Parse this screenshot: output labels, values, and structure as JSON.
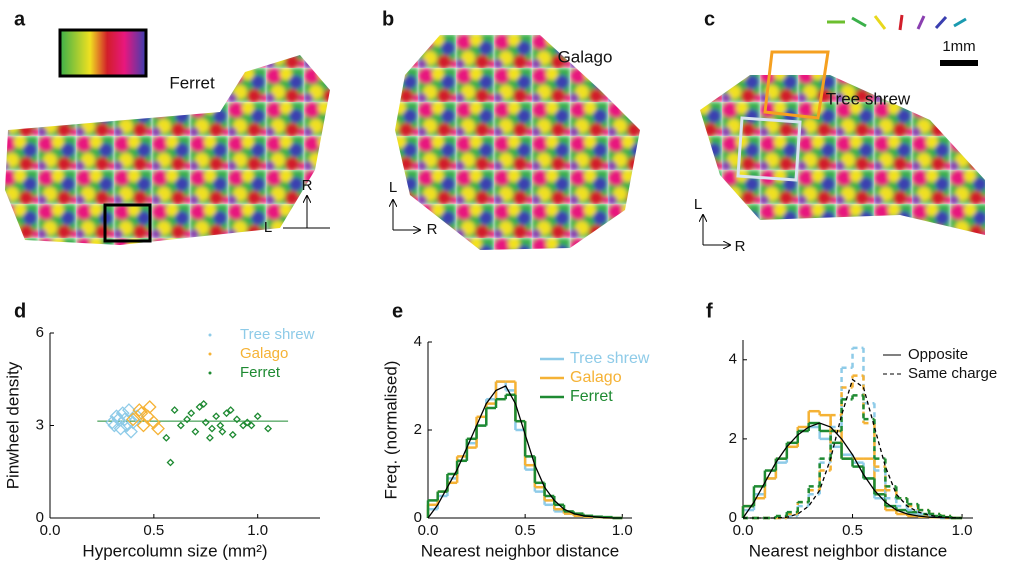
{
  "maps": [
    {
      "label": "a",
      "name": "Ferret",
      "directions": [
        "L",
        "R"
      ]
    },
    {
      "label": "b",
      "name": "Galago",
      "directions": [
        "L",
        "R"
      ]
    },
    {
      "label": "c",
      "name": "Tree shrew",
      "directions": [
        "L",
        "R"
      ]
    }
  ],
  "scale_bar": "1mm",
  "chart_data": [
    {
      "type": "scatter",
      "panel_label": "d",
      "y_label": "Pinwheel density",
      "x_label": "Hypercolumn size (mm²)",
      "xlim": [
        0,
        1.3
      ],
      "xticks": [
        {
          "value": 0,
          "label": "0.0"
        },
        0.5,
        {
          "value": 1,
          "label": "1.0"
        }
      ],
      "ylim": [
        0,
        6
      ],
      "yticks": [
        0,
        3,
        6
      ],
      "reference_line": 3.14,
      "series": [
        {
          "name": "Tree shrew",
          "color": "#8ecbe8",
          "x": [
            0.3,
            0.32,
            0.34,
            0.35,
            0.36,
            0.37,
            0.38,
            0.4,
            0.33,
            0.39,
            0.42,
            0.31
          ],
          "values": [
            3.1,
            3.3,
            2.9,
            3.4,
            3.2,
            3.0,
            3.5,
            3.1,
            3.2,
            2.8,
            3.3,
            3.0
          ]
        },
        {
          "name": "Galago",
          "color": "#f5b235",
          "x": [
            0.4,
            0.43,
            0.45,
            0.47,
            0.5,
            0.52,
            0.48,
            0.44
          ],
          "values": [
            3.2,
            3.5,
            3.0,
            3.3,
            3.1,
            2.9,
            3.6,
            3.4
          ]
        },
        {
          "name": "Ferret",
          "color": "#1e8a32",
          "x": [
            0.56,
            0.6,
            0.63,
            0.66,
            0.7,
            0.72,
            0.75,
            0.78,
            0.8,
            0.82,
            0.85,
            0.88,
            0.9,
            0.93,
            0.95,
            1.0,
            1.05,
            0.68,
            0.77,
            0.87,
            0.58,
            0.83,
            0.74,
            0.97
          ],
          "values": [
            2.6,
            3.5,
            3.0,
            3.2,
            2.8,
            3.6,
            3.1,
            2.9,
            3.3,
            3.0,
            3.4,
            2.7,
            3.2,
            3.0,
            3.1,
            3.3,
            2.9,
            3.4,
            2.6,
            3.5,
            1.8,
            2.8,
            3.7,
            3.0
          ]
        }
      ]
    },
    {
      "type": "histogram",
      "panel_label": "e",
      "y_label": "Freq. (normalised)",
      "x_label": "Nearest neighbor distance",
      "xlim": [
        0,
        1.05
      ],
      "xticks": [
        {
          "value": 0,
          "label": "0.0"
        },
        0.5,
        {
          "value": 1,
          "label": "1.0"
        }
      ],
      "ylim": [
        0,
        4
      ],
      "yticks": [
        0,
        2,
        4
      ],
      "bins": [
        0,
        0.05,
        0.1,
        0.15,
        0.2,
        0.25,
        0.3,
        0.35,
        0.4,
        0.45,
        0.5,
        0.55,
        0.6,
        0.65,
        0.7,
        0.75,
        0.8,
        0.85,
        0.9,
        0.95,
        1.0
      ],
      "series": [
        {
          "name": "Tree shrew",
          "color": "#8ecbe8",
          "values": [
            0.2,
            0.5,
            0.9,
            1.3,
            1.7,
            2.1,
            2.7,
            3.1,
            2.9,
            2.0,
            1.1,
            0.6,
            0.3,
            0.15,
            0.1,
            0.05,
            0.03,
            0.02,
            0.01,
            0
          ]
        },
        {
          "name": "Galago",
          "color": "#f5b235",
          "values": [
            0.3,
            0.6,
            0.8,
            1.4,
            1.6,
            2.3,
            2.6,
            3.1,
            3.1,
            2.2,
            1.2,
            0.7,
            0.4,
            0.2,
            0.1,
            0.05,
            0.03,
            0.02,
            0.01,
            0
          ]
        },
        {
          "name": "Ferret",
          "color": "#1e8a32",
          "values": [
            0.4,
            0.6,
            1.0,
            1.3,
            1.8,
            2.1,
            2.5,
            2.7,
            2.8,
            2.2,
            1.4,
            0.8,
            0.5,
            0.3,
            0.15,
            0.1,
            0.05,
            0.03,
            0.02,
            0
          ]
        }
      ],
      "fits": [
        {
          "color": "#000000",
          "dashed": false,
          "x": [
            0,
            0.05,
            0.1,
            0.15,
            0.2,
            0.25,
            0.3,
            0.35,
            0.4,
            0.45,
            0.5,
            0.55,
            0.6,
            0.65,
            0.7,
            0.75,
            0.8,
            0.85,
            0.9,
            0.95,
            1.0
          ],
          "values": [
            0,
            0.3,
            0.7,
            1.1,
            1.6,
            2.1,
            2.6,
            2.9,
            3.0,
            2.6,
            1.9,
            1.2,
            0.7,
            0.4,
            0.2,
            0.1,
            0.05,
            0.03,
            0.01,
            0,
            0
          ]
        }
      ]
    },
    {
      "type": "histogram",
      "panel_label": "f",
      "x_label": "Nearest neighbor distance",
      "xlim": [
        0,
        1.05
      ],
      "xticks": [
        {
          "value": 0,
          "label": "0.0"
        },
        0.5,
        {
          "value": 1,
          "label": "1.0"
        }
      ],
      "ylim": [
        0,
        4.5
      ],
      "yticks": [
        0,
        2,
        4
      ],
      "bins": [
        0,
        0.05,
        0.1,
        0.15,
        0.2,
        0.25,
        0.3,
        0.35,
        0.4,
        0.45,
        0.5,
        0.55,
        0.6,
        0.65,
        0.7,
        0.75,
        0.8,
        0.85,
        0.9,
        0.95,
        1.0
      ],
      "series": [
        {
          "color": "#8ecbe8",
          "dashed": false,
          "values": [
            0.2,
            0.6,
            1.0,
            1.4,
            1.8,
            2.2,
            2.3,
            2.0,
            1.8,
            1.6,
            1.4,
            1.0,
            0.5,
            0.3,
            0.2,
            0.1,
            0.05,
            0.03,
            0.02,
            0
          ]
        },
        {
          "color": "#f5b235",
          "dashed": false,
          "values": [
            0.3,
            0.5,
            1.0,
            1.5,
            1.8,
            2.3,
            2.7,
            2.6,
            2.2,
            1.5,
            1.5,
            1.5,
            0.7,
            0.2,
            0.1,
            0.05,
            0.03,
            0.02,
            0,
            0
          ]
        },
        {
          "color": "#1e8a32",
          "dashed": false,
          "values": [
            0.3,
            0.8,
            1.2,
            1.5,
            1.9,
            2.2,
            2.4,
            2.2,
            1.9,
            1.5,
            1.3,
            1.0,
            0.6,
            0.3,
            0.2,
            0.15,
            0.1,
            0.05,
            0.02,
            0
          ]
        },
        {
          "color": "#8ecbe8",
          "dashed": true,
          "values": [
            0,
            0,
            0,
            0,
            0.05,
            0.3,
            0.6,
            1.4,
            2.3,
            3.8,
            4.3,
            2.9,
            1.2,
            0.5,
            0.3,
            0.2,
            0.1,
            0.05,
            0,
            0
          ]
        },
        {
          "color": "#f5b235",
          "dashed": true,
          "values": [
            0,
            0,
            0,
            0,
            0.1,
            0.4,
            0.7,
            1.2,
            2.6,
            3.3,
            3.6,
            2.4,
            1.3,
            0.7,
            0.5,
            0.3,
            0.2,
            0.1,
            0.05,
            0
          ]
        },
        {
          "color": "#1e8a32",
          "dashed": true,
          "values": [
            0,
            0,
            0,
            0.05,
            0.15,
            0.4,
            0.8,
            1.5,
            2.2,
            3.0,
            3.1,
            2.5,
            1.5,
            0.8,
            0.5,
            0.35,
            0.2,
            0.1,
            0.05,
            0
          ]
        }
      ],
      "fits": [
        {
          "name": "Opposite",
          "color": "#000000",
          "dashed": false,
          "x": [
            0,
            0.05,
            0.1,
            0.15,
            0.2,
            0.25,
            0.3,
            0.35,
            0.4,
            0.45,
            0.5,
            0.55,
            0.6,
            0.65,
            0.7,
            0.75,
            0.8,
            0.85,
            0.9,
            0.95,
            1.0
          ],
          "values": [
            0,
            0.4,
            0.9,
            1.4,
            1.8,
            2.1,
            2.3,
            2.4,
            2.3,
            2.0,
            1.6,
            1.1,
            0.7,
            0.4,
            0.2,
            0.1,
            0.05,
            0.02,
            0.01,
            0,
            0
          ]
        },
        {
          "name": "Same charge",
          "color": "#000000",
          "dashed": true,
          "x": [
            0,
            0.05,
            0.1,
            0.15,
            0.2,
            0.25,
            0.3,
            0.35,
            0.4,
            0.45,
            0.5,
            0.55,
            0.6,
            0.65,
            0.7,
            0.75,
            0.8,
            0.85,
            0.9,
            0.95,
            1.0
          ],
          "values": [
            0,
            0,
            0,
            0,
            0.02,
            0.1,
            0.3,
            0.7,
            1.5,
            2.6,
            3.5,
            3.3,
            2.3,
            1.3,
            0.6,
            0.3,
            0.15,
            0.07,
            0.03,
            0.01,
            0
          ]
        }
      ]
    }
  ]
}
